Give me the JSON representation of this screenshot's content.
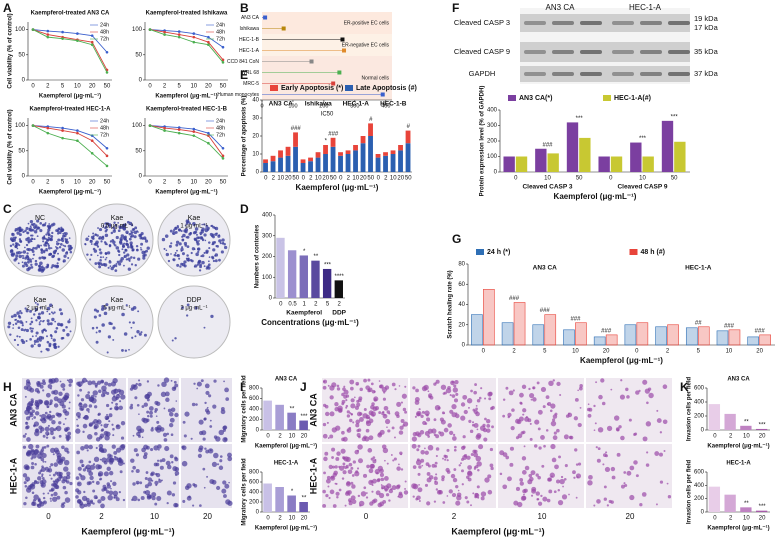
{
  "panels": [
    "A",
    "B",
    "C",
    "D",
    "E",
    "F",
    "G",
    "H",
    "I",
    "J",
    "K"
  ],
  "colonies": [
    {
      "name": "NC"
    },
    {
      "name": "Kae",
      "dose": "0.5 μg·mL⁻¹"
    },
    {
      "name": "Kae",
      "dose": "1 μg·mL⁻¹"
    },
    {
      "name": "Kae",
      "dose": "2 μg·mL⁻¹"
    },
    {
      "name": "Kae",
      "dose": "5 μg·mL⁻¹"
    },
    {
      "name": "DDP",
      "dose": "2 μg·mL⁻¹"
    }
  ],
  "blot": {
    "cells": [
      "AN3 CA",
      "HEC-1-A"
    ],
    "rows": [
      {
        "name": "Cleaved CASP 3",
        "kda": [
          "19 kDa",
          "17 kDa"
        ]
      },
      {
        "name": "Cleaved CASP 9",
        "kda": [
          "35 kDa"
        ]
      },
      {
        "name": "GAPDH",
        "kda": [
          "37 kDa"
        ]
      }
    ]
  },
  "migration": {
    "rows": [
      "AN3 CA",
      "HEC-1-A"
    ],
    "cols": [
      "0",
      "2",
      "10",
      "20"
    ],
    "xlabel": "Kaempferol (μg·mL⁻¹)"
  },
  "invasion": {
    "rows": [
      "AN3 CA",
      "HEC-1-A"
    ],
    "cols": [
      "0",
      "2",
      "10",
      "20"
    ],
    "xlabel": "Kaempferol (μg·mL⁻¹)"
  },
  "chart_data": [
    {
      "type": "line",
      "title": "Kaempferol-treated AN3 CA",
      "categories": [
        "0",
        "2",
        "5",
        "10",
        "20",
        "50"
      ],
      "series": [
        {
          "name": "24h",
          "color": "#3a5fcd",
          "values": [
            100,
            97,
            95,
            92,
            88,
            55
          ]
        },
        {
          "name": "48h",
          "color": "#d9403a",
          "values": [
            100,
            90,
            85,
            80,
            75,
            20
          ]
        },
        {
          "name": "72h",
          "color": "#4caf50",
          "values": [
            100,
            85,
            82,
            78,
            70,
            15
          ]
        }
      ],
      "ylim": [
        0,
        115
      ],
      "yticks": [
        0,
        50,
        100
      ],
      "xlabel": "Kaempferol (μg·mL⁻¹)",
      "ylabel": "Cell viability (% of control)"
    },
    {
      "type": "line",
      "title": "Kaempferol-treated Ishikawa",
      "categories": [
        "0",
        "2",
        "5",
        "10",
        "20",
        "50"
      ],
      "series": [
        {
          "name": "24h",
          "color": "#3a5fcd",
          "values": [
            100,
            98,
            96,
            92,
            85,
            65
          ]
        },
        {
          "name": "48h",
          "color": "#d9403a",
          "values": [
            100,
            95,
            90,
            85,
            75,
            40
          ]
        },
        {
          "name": "72h",
          "color": "#4caf50",
          "values": [
            100,
            90,
            85,
            75,
            70,
            35
          ]
        }
      ],
      "ylim": [
        0,
        115
      ],
      "yticks": [
        0,
        50,
        100
      ],
      "xlabel": "Kaempferol (μg·mL⁻¹)"
    },
    {
      "type": "line",
      "title": "Kaempferol-treated HEC-1-A",
      "categories": [
        "0",
        "2",
        "5",
        "10",
        "20",
        "50"
      ],
      "series": [
        {
          "name": "24h",
          "color": "#3a5fcd",
          "values": [
            100,
            98,
            95,
            90,
            80,
            55
          ]
        },
        {
          "name": "48h",
          "color": "#d9403a",
          "values": [
            100,
            95,
            90,
            85,
            70,
            40
          ]
        },
        {
          "name": "72h",
          "color": "#4caf50",
          "values": [
            100,
            85,
            75,
            70,
            45,
            20
          ]
        }
      ],
      "ylim": [
        0,
        115
      ],
      "yticks": [
        0,
        50,
        100
      ],
      "xlabel": "Kaempferol (μg·mL⁻¹)",
      "ylabel": "Cell viability (% of control)"
    },
    {
      "type": "line",
      "title": "Kaempferol-treated HEC-1-B",
      "categories": [
        "0",
        "2",
        "5",
        "10",
        "20",
        "50"
      ],
      "series": [
        {
          "name": "24h",
          "color": "#3a5fcd",
          "values": [
            100,
            98,
            96,
            93,
            85,
            55
          ]
        },
        {
          "name": "48h",
          "color": "#d9403a",
          "values": [
            100,
            95,
            92,
            88,
            80,
            40
          ]
        },
        {
          "name": "72h",
          "color": "#4caf50",
          "values": [
            100,
            90,
            85,
            80,
            65,
            35
          ]
        }
      ],
      "ylim": [
        0,
        115
      ],
      "yticks": [
        0,
        50,
        100
      ],
      "xlabel": "Kaempferol (μg·mL⁻¹)"
    },
    {
      "type": "dot",
      "categories": [
        "AN3 CA",
        "Ishikawa",
        "HEC-1-B",
        "HEC-1-A",
        "CCD 841 CoN",
        "WRL 68",
        "MRC-5",
        "Human monocytes"
      ],
      "values": [
        10,
        70,
        260,
        265,
        160,
        250,
        230,
        390
      ],
      "colors": [
        "#3a5fcd",
        "#b8860b",
        "#111111",
        "#e08a2a",
        "#888888",
        "#4caf50",
        "#d9403a",
        "#3a5fcd"
      ],
      "xlim": [
        0,
        420
      ],
      "xticks": [
        0,
        100,
        200,
        300,
        400
      ],
      "xlabel": "IC50",
      "regions": [
        "ER-positive EC cells",
        "ER-negative EC cells",
        "Normal cells"
      ]
    },
    {
      "type": "bar",
      "groups": [
        {
          "name": "Kaempferol",
          "categories": [
            "0",
            "0.5",
            "1",
            "2",
            "5"
          ]
        },
        {
          "name": "DDP",
          "categories": [
            "2"
          ]
        }
      ],
      "group_labels": "bottom",
      "values": [
        290,
        230,
        205,
        180,
        140,
        85
      ],
      "colors": [
        "#c9c3e6",
        "#9c8fcf",
        "#7b6db9",
        "#5a4a9f",
        "#3d2b85",
        "#111111"
      ],
      "ylim": [
        0,
        400
      ],
      "yticks": [
        0,
        100,
        200,
        300,
        400
      ],
      "ylabel": "Numbers of contonies",
      "xlabel": "Concentrations (μg·mL⁻¹)",
      "annotations": [
        {
          "text": "*",
          "index": 2
        },
        {
          "text": "**",
          "index": 3
        },
        {
          "text": "***",
          "index": 4
        },
        {
          "text": "****",
          "index": 5
        }
      ]
    },
    {
      "type": "bar",
      "stacked": true,
      "groups": [
        {
          "name": "AN3 CA",
          "categories": [
            "0",
            "2",
            "10",
            "20",
            "50"
          ]
        },
        {
          "name": "Ishikawa",
          "categories": [
            "0",
            "2",
            "10",
            "20",
            "50"
          ]
        },
        {
          "name": "HEC-1-A",
          "categories": [
            "0",
            "2",
            "10",
            "20",
            "50"
          ]
        },
        {
          "name": "HEC-1-B",
          "categories": [
            "0",
            "2",
            "10",
            "20",
            "50"
          ]
        }
      ],
      "group_labels": "top",
      "series": [
        {
          "name": "Early Apoptosis (*)",
          "color": "#e8443a",
          "values": [
            2,
            3,
            4,
            5,
            8,
            2,
            2,
            3,
            5,
            5,
            2,
            2,
            3,
            4,
            7,
            2,
            2,
            2,
            3,
            7
          ]
        },
        {
          "name": "Late Apoptosis (#)",
          "color": "#2b5fb0",
          "values": [
            5,
            6,
            8,
            9,
            14,
            5,
            6,
            8,
            10,
            14,
            9,
            10,
            12,
            16,
            20,
            8,
            9,
            10,
            12,
            16
          ]
        }
      ],
      "ylim": [
        0,
        40
      ],
      "yticks": [
        0,
        10,
        20,
        30,
        40
      ],
      "ylabel": "Percentage of apoptosis (%)",
      "xlabel": "Kaempferol (μg·mL⁻¹)",
      "annotations": [
        {
          "text": "###",
          "index": 4
        },
        {
          "text": "*",
          "index": 8
        },
        {
          "text": "###",
          "index": 9
        },
        {
          "text": "#",
          "index": 14
        },
        {
          "text": "#",
          "index": 19
        }
      ]
    },
    {
      "type": "bar",
      "groups": [
        {
          "name": "Cleaved CASP 3",
          "categories": [
            "0",
            "10",
            "50"
          ]
        },
        {
          "name": "Cleaved CASP 9",
          "categories": [
            "0",
            "10",
            "50"
          ]
        }
      ],
      "group_labels": "bottom",
      "series": [
        {
          "name": "AN3 CA(*)",
          "color": "#7b3fa0",
          "values": [
            100,
            150,
            320,
            100,
            190,
            330
          ]
        },
        {
          "name": "HEC-1-A(#)",
          "color": "#c8c832",
          "values": [
            100,
            120,
            220,
            100,
            100,
            195
          ]
        }
      ],
      "ylim": [
        0,
        400
      ],
      "yticks": [
        0,
        100,
        200,
        300,
        400
      ],
      "ylabel": "Protein expression level (% of GAPDH)",
      "xlabel": "Kaempferol (μg·mL⁻¹)",
      "annotations": [
        {
          "text": "###",
          "index": 1
        },
        {
          "text": "***",
          "index": 2
        },
        {
          "text": "***",
          "index": 4
        },
        {
          "text": "***",
          "index": 5
        }
      ]
    },
    {
      "type": "bar",
      "outline": true,
      "groups": [
        {
          "name": "AN3 CA",
          "categories": [
            "0",
            "2",
            "5",
            "10",
            "20"
          ]
        },
        {
          "name": "HEC-1-A",
          "categories": [
            "0",
            "2",
            "5",
            "10",
            "20"
          ]
        }
      ],
      "group_labels": "top",
      "series": [
        {
          "name": "24 h (*)",
          "color": "#2f6fb5",
          "values": [
            30,
            22,
            20,
            15,
            8,
            20,
            18,
            17,
            14,
            8
          ]
        },
        {
          "name": "48 h (#)",
          "color": "#e8443a",
          "values": [
            55,
            42,
            30,
            22,
            10,
            22,
            20,
            18,
            15,
            10
          ]
        }
      ],
      "ylim": [
        0,
        80
      ],
      "yticks": [
        0,
        20,
        40,
        60,
        80
      ],
      "ylabel": "Scratch healing rate (%)",
      "xlabel": "Kaempferol (μg·mL⁻¹)",
      "annotations": [
        {
          "text": "###",
          "index": 1
        },
        {
          "text": "###",
          "index": 2
        },
        {
          "text": "###",
          "index": 3
        },
        {
          "text": "###",
          "index": 4
        },
        {
          "text": "##",
          "index": 7
        },
        {
          "text": "###",
          "index": 8
        },
        {
          "text": "###",
          "index": 9
        }
      ]
    },
    {
      "type": "bar",
      "title": "AN3 CA",
      "categories": [
        "0",
        "2",
        "10",
        "20"
      ],
      "values": [
        560,
        480,
        330,
        180
      ],
      "colors": [
        "#c8c0e6",
        "#a99ed6",
        "#8a7cc4",
        "#6b5ab0"
      ],
      "ylim": [
        0,
        800
      ],
      "yticks": [
        0,
        200,
        400,
        600,
        800
      ],
      "ylabel": "Migratory cells per field",
      "xlabel": "Kaempferol (μg·mL⁻¹)",
      "annotations": [
        {
          "text": "**",
          "index": 2
        },
        {
          "text": "***",
          "index": 3
        }
      ]
    },
    {
      "type": "bar",
      "title": "HEC-1-A",
      "categories": [
        "0",
        "2",
        "10",
        "20"
      ],
      "values": [
        570,
        500,
        330,
        200
      ],
      "colors": [
        "#c8c0e6",
        "#a99ed6",
        "#8a7cc4",
        "#6b5ab0"
      ],
      "ylim": [
        0,
        800
      ],
      "yticks": [
        0,
        200,
        400,
        600,
        800
      ],
      "ylabel": "Migratory cells per field",
      "xlabel": "Kaempferol (μg·mL⁻¹)",
      "annotations": [
        {
          "text": "*",
          "index": 2
        },
        {
          "text": "**",
          "index": 3
        }
      ]
    },
    {
      "type": "bar",
      "title": "AN3 CA",
      "categories": [
        "0",
        "2",
        "10",
        "20"
      ],
      "values": [
        370,
        230,
        60,
        15
      ],
      "colors": [
        "#e8cde8",
        "#d4a8d6",
        "#bf82c2",
        "#a65ca9"
      ],
      "ylim": [
        0,
        600
      ],
      "yticks": [
        0,
        200,
        400,
        600
      ],
      "ylabel": "Invasion cells per field",
      "xlabel": "Kaempferol (μg·mL⁻¹)",
      "annotations": [
        {
          "text": "**",
          "index": 2
        },
        {
          "text": "***",
          "index": 3
        }
      ]
    },
    {
      "type": "bar",
      "title": "HEC-1-A",
      "categories": [
        "0",
        "2",
        "10",
        "20"
      ],
      "values": [
        380,
        260,
        70,
        20
      ],
      "colors": [
        "#e8cde8",
        "#d4a8d6",
        "#bf82c2",
        "#a65ca9"
      ],
      "ylim": [
        0,
        600
      ],
      "yticks": [
        0,
        200,
        400,
        600
      ],
      "ylabel": "Invasion cells per field",
      "xlabel": "Kaempferol (μg·mL⁻¹)",
      "annotations": [
        {
          "text": "**",
          "index": 2
        },
        {
          "text": "***",
          "index": 3
        }
      ]
    }
  ]
}
